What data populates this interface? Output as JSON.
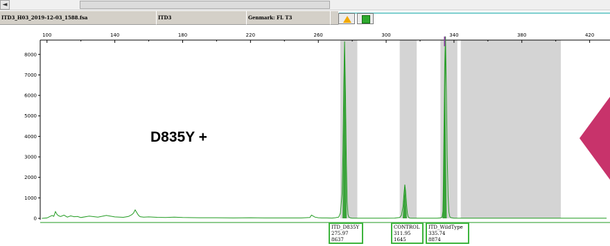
{
  "scrollbar": {
    "left_arrow": "◄"
  },
  "info_bar": {
    "file_name": "ITD3_H03_2019-12-03_1588.fsa",
    "sample": "ITD3",
    "panel": "Genmark: FL T3",
    "icons": [
      "warning-triangle-icon",
      "green-status-icon"
    ]
  },
  "mutation_label": "D835Y +",
  "colors": {
    "trace": "#1f9a1f",
    "peak_top": "#8a3fa0",
    "bin": "#d4d4d4",
    "annotation_border": "#3cb43c",
    "accent": "#c8336b"
  },
  "chart_data": {
    "type": "line",
    "title": "",
    "xlabel": "",
    "ylabel": "",
    "xlim": [
      96,
      432
    ],
    "ylim": [
      0,
      8700
    ],
    "x_ticks": [
      "100",
      "140",
      "180",
      "220",
      "260",
      "300",
      "340",
      "380",
      "420"
    ],
    "y_ticks": [
      "0",
      "1000",
      "2000",
      "3000",
      "4000",
      "5000",
      "6000",
      "7000",
      "8000"
    ],
    "bins": [
      {
        "x_from": 273.0,
        "x_to": 283.0
      },
      {
        "x_from": 308.0,
        "x_to": 318.0
      },
      {
        "x_from": 332.0,
        "x_to": 342.0
      },
      {
        "x_from": 344.0,
        "x_to": 403.0
      }
    ],
    "series": [
      {
        "x": [
          97,
          100,
          103,
          104,
          105,
          106,
          107,
          108,
          110,
          112,
          114,
          116,
          118,
          120,
          125,
          130,
          135,
          140,
          145,
          148,
          150,
          151,
          152,
          153,
          154,
          155,
          157,
          160,
          165,
          170,
          175,
          180,
          190,
          200,
          210,
          220,
          230,
          240,
          250,
          255,
          256,
          258,
          260,
          262,
          265,
          268,
          270,
          272,
          273,
          274,
          274.5,
          275,
          275.5,
          276,
          276.5,
          277,
          277.5,
          278,
          279,
          280,
          282,
          285,
          290,
          295,
          300,
          305,
          308,
          309,
          310,
          310.5,
          311,
          311.5,
          312,
          312.5,
          313,
          313.5,
          314,
          315,
          318,
          320,
          325,
          330,
          332,
          333,
          333.5,
          334,
          334.5,
          335,
          335.5,
          336,
          336.5,
          337,
          337.5,
          338,
          339,
          340,
          342,
          345,
          350,
          360,
          370,
          380,
          390,
          400,
          410,
          420,
          430
        ],
        "y": [
          0,
          20,
          140,
          100,
          330,
          180,
          120,
          90,
          160,
          60,
          120,
          80,
          90,
          40,
          110,
          60,
          140,
          70,
          50,
          90,
          180,
          260,
          410,
          280,
          140,
          80,
          60,
          70,
          50,
          40,
          60,
          40,
          30,
          30,
          20,
          30,
          20,
          20,
          20,
          40,
          160,
          60,
          30,
          20,
          20,
          15,
          30,
          60,
          250,
          1200,
          3200,
          6400,
          8637,
          6100,
          2900,
          800,
          200,
          60,
          20,
          10,
          10,
          10,
          10,
          10,
          10,
          15,
          40,
          150,
          600,
          1200,
          1645,
          1300,
          700,
          250,
          80,
          30,
          15,
          10,
          10,
          10,
          10,
          10,
          20,
          60,
          350,
          1800,
          4800,
          8874,
          6200,
          3100,
          1100,
          300,
          90,
          40,
          20,
          10,
          10,
          10,
          10,
          10,
          10,
          10,
          10,
          10,
          10,
          10,
          10
        ]
      }
    ],
    "annotations": [
      {
        "name": "ITD_D835Y",
        "size": "275.97",
        "height": "8637"
      },
      {
        "name": "CONTROL",
        "size": "311.95",
        "height": "1645"
      },
      {
        "name": "ITD_WildType",
        "size": "335.74",
        "height": "8874"
      }
    ]
  }
}
